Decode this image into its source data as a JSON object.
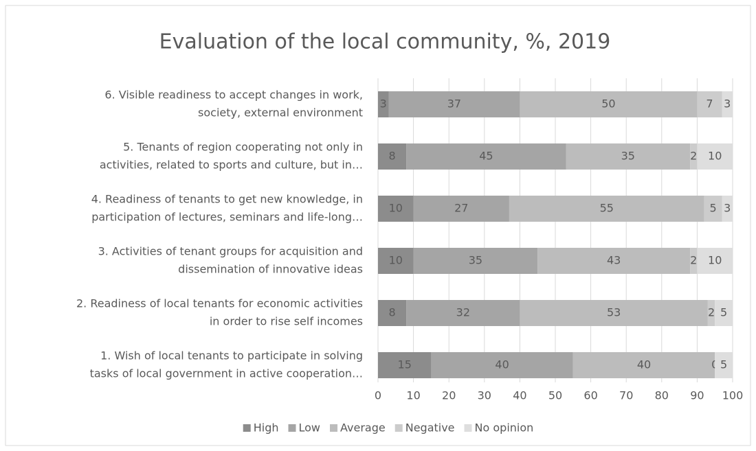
{
  "chart_data": {
    "type": "bar",
    "orientation": "horizontal",
    "stacked": true,
    "title": "Evaluation of the local community, %, 2019",
    "categories": [
      [
        "1. Wish of local tenants to participate in solving",
        "tasks of local government in active cooperation…"
      ],
      [
        "2. Readiness of local tenants for economic activities",
        "in order to rise self incomes"
      ],
      [
        "3. Activities of tenant groups for acquisition and",
        "dissemination of innovative ideas"
      ],
      [
        "4. Readiness of tenants to get new knowledge, in",
        "participation of lectures, seminars and life-long…"
      ],
      [
        "5. Tenants of region cooperating not only in",
        "activities, related to sports and culture, but in…"
      ],
      [
        "6.  Visible readiness to accept changes in work,",
        "society, external environment"
      ]
    ],
    "series": [
      {
        "name": "High",
        "color": "#8c8c8c",
        "values": [
          15,
          8,
          10,
          10,
          8,
          3
        ]
      },
      {
        "name": "Low",
        "color": "#a5a5a5",
        "values": [
          40,
          32,
          35,
          27,
          45,
          37
        ]
      },
      {
        "name": "Average",
        "color": "#bcbcbc",
        "values": [
          40,
          53,
          43,
          55,
          35,
          50
        ]
      },
      {
        "name": "Negative",
        "color": "#cccccc",
        "values": [
          0,
          2,
          2,
          5,
          2,
          7
        ]
      },
      {
        "name": "No opinion",
        "color": "#dedede",
        "values": [
          5,
          5,
          10,
          3,
          10,
          3
        ]
      }
    ],
    "xlim": [
      0,
      100
    ],
    "xticks": [
      0,
      10,
      20,
      30,
      40,
      50,
      60,
      70,
      80,
      90,
      100
    ],
    "grid": true,
    "legend": "bottom"
  }
}
